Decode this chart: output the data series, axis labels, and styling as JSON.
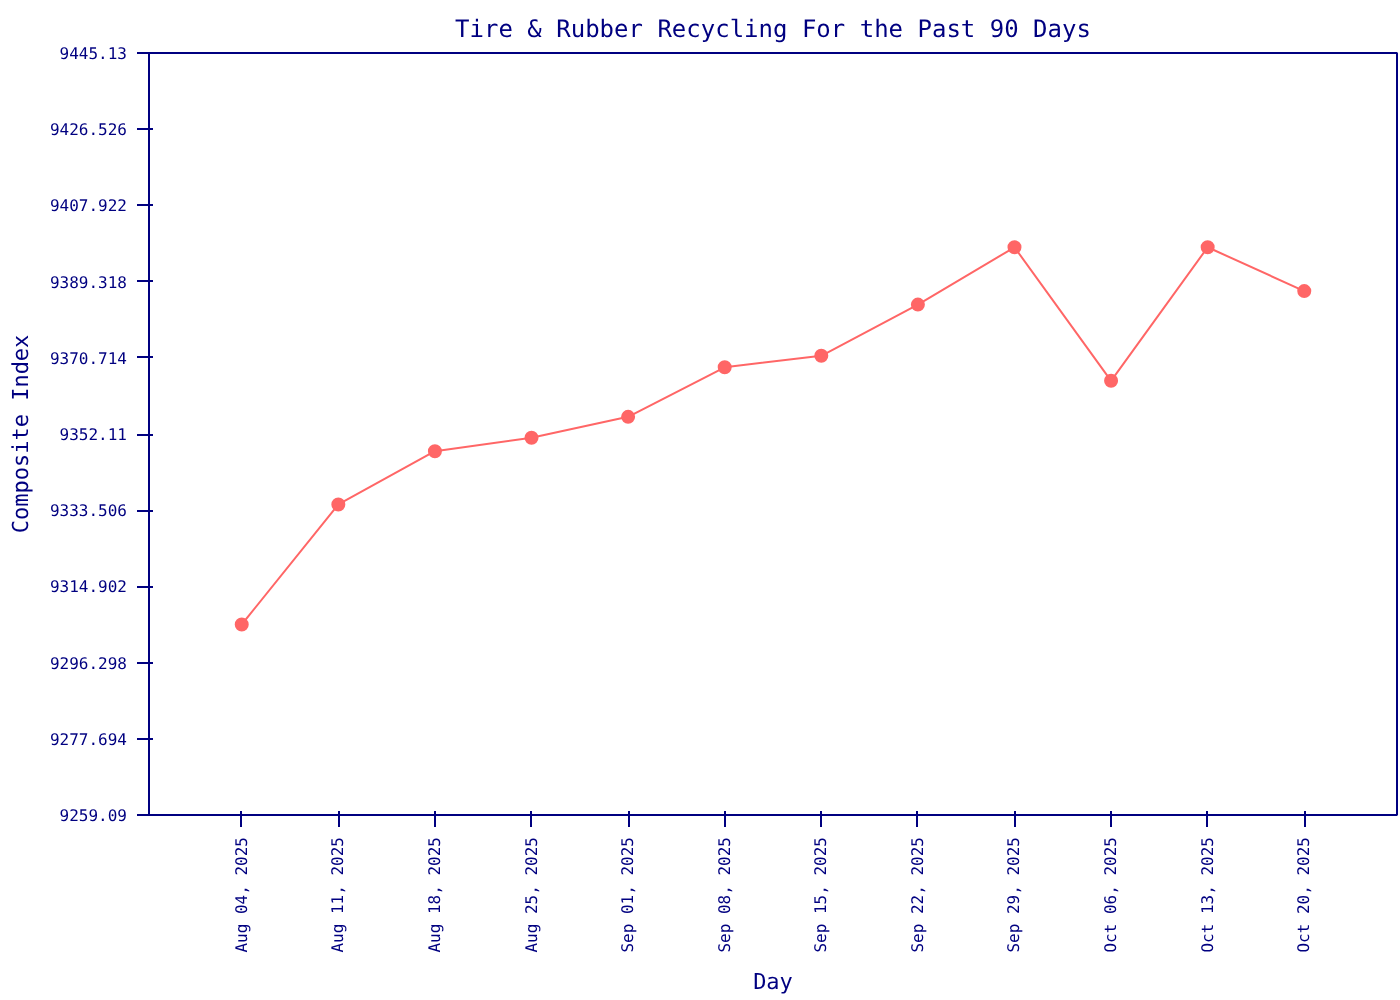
{
  "chart_data": {
    "type": "line",
    "title": "Tire & Rubber Recycling For the Past 90 Days",
    "xlabel": "Day",
    "ylabel": "Composite Index",
    "categories": [
      "Aug 04, 2025",
      "Aug 11, 2025",
      "Aug 18, 2025",
      "Aug 25, 2025",
      "Sep 01, 2025",
      "Sep 08, 2025",
      "Sep 15, 2025",
      "Sep 22, 2025",
      "Sep 29, 2025",
      "Oct 06, 2025",
      "Oct 13, 2025",
      "Oct 20, 2025"
    ],
    "series": [
      {
        "color": "#ff6666",
        "values": [
          9305.6,
          9334.9,
          9347.9,
          9351.2,
          9356.3,
          9368.4,
          9371.2,
          9383.7,
          9397.7,
          9365.1,
          9397.7,
          9387.0
        ]
      }
    ],
    "ylim": [
      9259.09,
      9445.13
    ],
    "yticks": [
      9259.09,
      9277.694,
      9296.298,
      9314.902,
      9333.506,
      9352.11,
      9370.714,
      9389.318,
      9407.922,
      9426.526,
      9445.13
    ],
    "grid": false,
    "marker": "circle",
    "line_style": "solid"
  }
}
